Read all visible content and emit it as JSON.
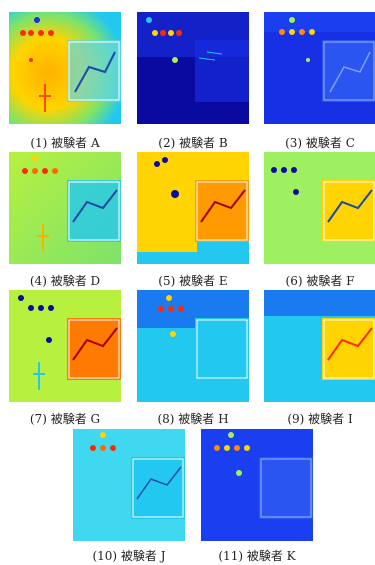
{
  "figure": {
    "captions": [
      "(1) 被験者 A",
      "(2) 被験者 B",
      "(3) 被験者 C",
      "(4) 被験者 D",
      "(5) 被験者 E",
      "(6) 被験者 F",
      "(7) 被験者 G",
      "(8) 被験者 H",
      "(9) 被験者 I",
      "(10) 被験者 J",
      "(11) 被験者 K"
    ],
    "colors": {
      "hot": "#ff2a00",
      "warm": "#ffd400",
      "mid": "#a8f050",
      "cool": "#22c8f0",
      "cold": "#1730e6",
      "deep": "#0a0aa0"
    }
  }
}
